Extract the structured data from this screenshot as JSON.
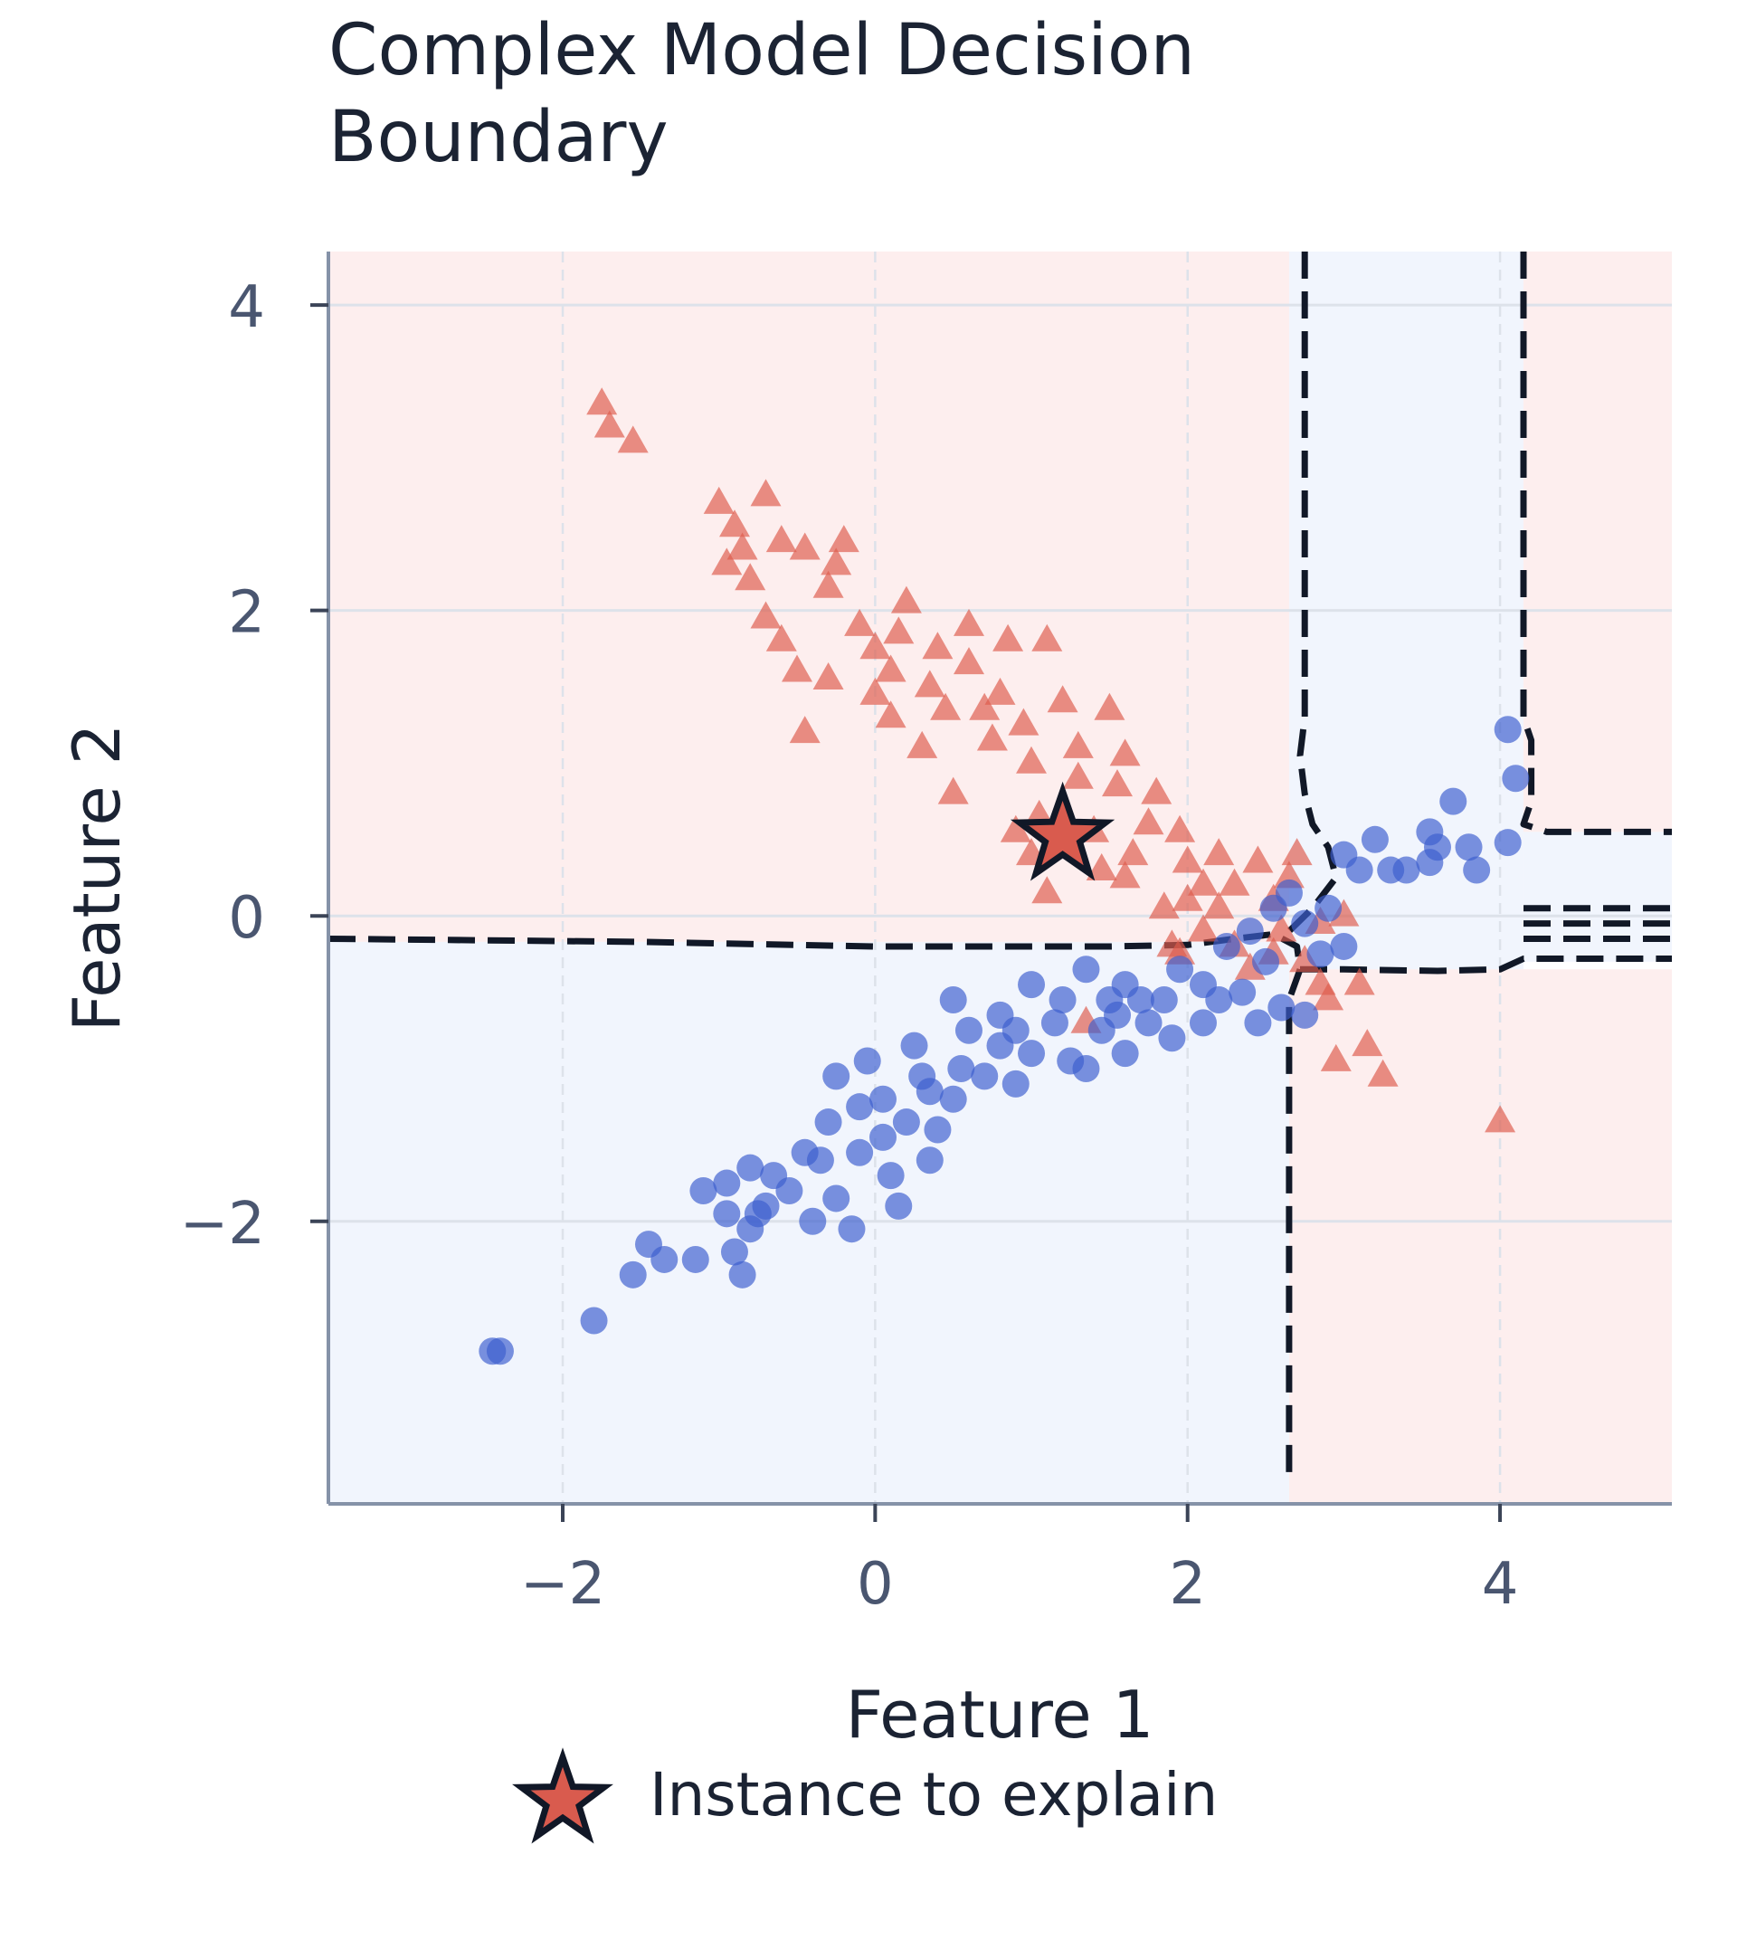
{
  "chart_data": {
    "type": "scatter",
    "title_lines": [
      "Complex Model Decision",
      "Boundary"
    ],
    "xlabel": "Feature 1",
    "ylabel": "Feature 2",
    "xlim": [
      -3.5,
      5.1
    ],
    "ylim": [
      -3.85,
      4.35
    ],
    "xticks": [
      -2,
      0,
      2,
      4
    ],
    "yticks": [
      -2,
      0,
      2,
      4
    ],
    "xtick_labels": [
      "−2",
      "0",
      "2",
      "4"
    ],
    "ytick_labels": [
      "−2",
      "0",
      "2",
      "4"
    ],
    "grid": true,
    "legend": {
      "placement": "bottom-center",
      "entries": [
        "Instance to explain"
      ]
    },
    "colors": {
      "class_triangle": "#dd5b4c",
      "class_circle": "#3c5fcf",
      "region_triangle": "#fdeeee",
      "region_circle": "#f1f5fd",
      "boundary": "#111827",
      "instance_fill": "#d95b4e"
    },
    "regions": [
      {
        "class": "triangle",
        "x": [
          -3.5,
          2.65
        ],
        "y": [
          -0.17,
          4.35
        ]
      },
      {
        "class": "circle",
        "x": [
          2.65,
          4.15
        ],
        "y": [
          -0.35,
          4.35
        ]
      },
      {
        "class": "triangle",
        "x": [
          4.15,
          5.1
        ],
        "y": [
          0.55,
          4.35
        ]
      },
      {
        "class": "circle",
        "x": [
          4.15,
          5.1
        ],
        "y": [
          -0.3,
          0.55
        ]
      },
      {
        "class": "circle",
        "x": [
          -3.5,
          2.65
        ],
        "y": [
          -3.85,
          -0.17
        ]
      },
      {
        "class": "triangle",
        "x": [
          2.65,
          5.1
        ],
        "y": [
          -3.85,
          -0.35
        ]
      }
    ],
    "boundaries": [
      [
        [
          -3.5,
          -0.15
        ],
        [
          -1.5,
          -0.17
        ],
        [
          0.0,
          -0.2
        ],
        [
          1.5,
          -0.2
        ],
        [
          2.0,
          -0.19
        ],
        [
          2.3,
          -0.15
        ],
        [
          2.55,
          -0.12
        ],
        [
          2.7,
          -0.2
        ],
        [
          2.72,
          -0.35
        ],
        [
          2.65,
          -0.55
        ],
        [
          2.65,
          -3.7
        ]
      ],
      [
        [
          2.75,
          4.35
        ],
        [
          2.75,
          1.3
        ],
        [
          2.72,
          1.05
        ],
        [
          2.75,
          0.8
        ],
        [
          2.8,
          0.6
        ],
        [
          2.9,
          0.45
        ],
        [
          2.95,
          0.25
        ],
        [
          2.8,
          0.05
        ],
        [
          2.65,
          -0.1
        ]
      ],
      [
        [
          2.72,
          -0.35
        ],
        [
          3.0,
          -0.35
        ],
        [
          3.6,
          -0.36
        ],
        [
          4.0,
          -0.35
        ],
        [
          4.15,
          -0.28
        ],
        [
          5.1,
          -0.28
        ]
      ],
      [
        [
          4.15,
          4.35
        ],
        [
          4.15,
          1.3
        ],
        [
          4.2,
          1.15
        ],
        [
          4.2,
          0.75
        ],
        [
          4.15,
          0.6
        ],
        [
          4.3,
          0.55
        ],
        [
          5.1,
          0.55
        ]
      ],
      [
        [
          4.15,
          -0.05
        ],
        [
          5.1,
          -0.05
        ]
      ],
      [
        [
          4.15,
          0.05
        ],
        [
          5.1,
          0.05
        ]
      ],
      [
        [
          4.15,
          -0.15
        ],
        [
          5.1,
          -0.15
        ]
      ]
    ],
    "instance": {
      "x": 1.2,
      "y": 0.52,
      "label": "Instance to explain"
    },
    "series": [
      {
        "marker": "triangle",
        "points": [
          [
            -1.75,
            3.35
          ],
          [
            -1.7,
            3.2
          ],
          [
            -1.55,
            3.1
          ],
          [
            -1.0,
            2.7
          ],
          [
            -0.7,
            2.75
          ],
          [
            -0.9,
            2.55
          ],
          [
            -0.6,
            2.45
          ],
          [
            -0.45,
            2.4
          ],
          [
            -0.85,
            2.4
          ],
          [
            -0.95,
            2.3
          ],
          [
            -0.8,
            2.2
          ],
          [
            -0.2,
            2.45
          ],
          [
            -0.25,
            2.3
          ],
          [
            -0.3,
            2.15
          ],
          [
            -0.7,
            1.95
          ],
          [
            -0.6,
            1.8
          ],
          [
            -0.5,
            1.6
          ],
          [
            -0.3,
            1.55
          ],
          [
            -0.45,
            1.2
          ],
          [
            -0.1,
            1.9
          ],
          [
            0.0,
            1.75
          ],
          [
            0.1,
            1.6
          ],
          [
            0.15,
            1.85
          ],
          [
            0.35,
            1.5
          ],
          [
            0.4,
            1.75
          ],
          [
            0.6,
            1.65
          ],
          [
            0.85,
            1.8
          ],
          [
            1.1,
            1.8
          ],
          [
            0.8,
            1.45
          ],
          [
            0.95,
            1.25
          ],
          [
            1.2,
            1.4
          ],
          [
            1.3,
            1.1
          ],
          [
            1.5,
            1.35
          ],
          [
            1.6,
            1.05
          ],
          [
            1.3,
            0.9
          ],
          [
            1.55,
            0.85
          ],
          [
            1.8,
            0.8
          ],
          [
            1.75,
            0.6
          ],
          [
            1.95,
            0.55
          ],
          [
            2.0,
            0.35
          ],
          [
            2.2,
            0.4
          ],
          [
            2.3,
            0.2
          ],
          [
            2.45,
            0.35
          ],
          [
            2.2,
            0.05
          ],
          [
            2.0,
            0.1
          ],
          [
            1.85,
            0.05
          ],
          [
            1.6,
            0.25
          ],
          [
            1.45,
            0.3
          ],
          [
            1.0,
            0.4
          ],
          [
            0.9,
            0.55
          ],
          [
            1.1,
            0.15
          ],
          [
            1.0,
            1.0
          ],
          [
            0.75,
            1.15
          ],
          [
            0.5,
            0.8
          ],
          [
            0.3,
            1.1
          ],
          [
            0.1,
            1.3
          ],
          [
            0.6,
            1.9
          ],
          [
            0.2,
            2.05
          ],
          [
            2.55,
            0.1
          ],
          [
            2.1,
            -0.1
          ],
          [
            2.3,
            -0.2
          ],
          [
            1.95,
            -0.25
          ],
          [
            2.4,
            -0.35
          ],
          [
            2.6,
            -0.1
          ],
          [
            2.75,
            -0.3
          ],
          [
            2.85,
            -0.45
          ],
          [
            2.9,
            -0.55
          ],
          [
            2.85,
            -0.05
          ],
          [
            3.0,
            0.0
          ],
          [
            3.1,
            -0.45
          ],
          [
            3.15,
            -0.85
          ],
          [
            3.25,
            -1.05
          ],
          [
            2.95,
            -0.95
          ],
          [
            4.0,
            -1.35
          ],
          [
            1.35,
            -0.7
          ],
          [
            1.9,
            -0.2
          ],
          [
            1.65,
            0.4
          ],
          [
            0.7,
            1.35
          ],
          [
            0.45,
            1.35
          ],
          [
            0.0,
            1.45
          ],
          [
            1.05,
            0.65
          ],
          [
            1.4,
            0.55
          ],
          [
            2.1,
            0.2
          ],
          [
            2.65,
            0.25
          ],
          [
            2.7,
            0.4
          ],
          [
            2.55,
            -0.25
          ]
        ]
      },
      {
        "marker": "circle",
        "points": [
          [
            -2.45,
            -2.85
          ],
          [
            -2.4,
            -2.85
          ],
          [
            -1.8,
            -2.65
          ],
          [
            -1.45,
            -2.15
          ],
          [
            -1.55,
            -2.35
          ],
          [
            -1.35,
            -2.25
          ],
          [
            -1.15,
            -2.25
          ],
          [
            -0.9,
            -2.2
          ],
          [
            -0.85,
            -2.35
          ],
          [
            -1.1,
            -1.8
          ],
          [
            -0.95,
            -1.75
          ],
          [
            -0.8,
            -1.65
          ],
          [
            -0.7,
            -1.9
          ],
          [
            -0.8,
            -2.05
          ],
          [
            -0.55,
            -1.8
          ],
          [
            -0.4,
            -2.0
          ],
          [
            -0.35,
            -1.6
          ],
          [
            -0.25,
            -1.85
          ],
          [
            -0.1,
            -1.55
          ],
          [
            -0.3,
            -1.35
          ],
          [
            -0.1,
            -1.25
          ],
          [
            0.05,
            -1.45
          ],
          [
            0.1,
            -1.7
          ],
          [
            0.2,
            -1.35
          ],
          [
            0.35,
            -1.6
          ],
          [
            0.4,
            -1.4
          ],
          [
            0.5,
            -1.2
          ],
          [
            0.3,
            -1.05
          ],
          [
            0.55,
            -1.0
          ],
          [
            0.7,
            -1.05
          ],
          [
            0.8,
            -0.85
          ],
          [
            0.9,
            -1.1
          ],
          [
            1.0,
            -0.9
          ],
          [
            1.15,
            -0.7
          ],
          [
            1.25,
            -0.95
          ],
          [
            1.35,
            -1.0
          ],
          [
            1.45,
            -0.75
          ],
          [
            1.55,
            -0.65
          ],
          [
            1.6,
            -0.9
          ],
          [
            1.75,
            -0.7
          ],
          [
            1.85,
            -0.55
          ],
          [
            1.95,
            -0.35
          ],
          [
            2.1,
            -0.45
          ],
          [
            2.2,
            -0.55
          ],
          [
            2.35,
            -0.5
          ],
          [
            2.5,
            -0.3
          ],
          [
            2.4,
            -0.1
          ],
          [
            2.55,
            0.05
          ],
          [
            2.65,
            0.15
          ],
          [
            2.75,
            -0.05
          ],
          [
            2.9,
            0.05
          ],
          [
            3.0,
            0.4
          ],
          [
            3.1,
            0.3
          ],
          [
            3.2,
            0.5
          ],
          [
            3.4,
            0.3
          ],
          [
            3.55,
            0.55
          ],
          [
            3.6,
            0.45
          ],
          [
            3.7,
            0.75
          ],
          [
            3.8,
            0.45
          ],
          [
            3.85,
            0.3
          ],
          [
            3.55,
            0.35
          ],
          [
            4.05,
            1.22
          ],
          [
            4.1,
            0.9
          ],
          [
            4.05,
            0.48
          ],
          [
            2.1,
            -0.7
          ],
          [
            2.6,
            -0.6
          ],
          [
            2.75,
            -0.65
          ],
          [
            1.35,
            -0.35
          ],
          [
            1.6,
            -0.45
          ],
          [
            1.0,
            -0.45
          ],
          [
            0.8,
            -0.65
          ],
          [
            0.6,
            -0.75
          ],
          [
            0.5,
            -0.55
          ],
          [
            -0.05,
            -0.95
          ],
          [
            -0.25,
            -1.05
          ],
          [
            0.15,
            -1.9
          ],
          [
            -0.15,
            -2.05
          ],
          [
            -0.75,
            -1.95
          ],
          [
            -0.95,
            -1.95
          ],
          [
            3.0,
            -0.2
          ],
          [
            2.85,
            -0.25
          ],
          [
            3.3,
            0.3
          ],
          [
            1.9,
            -0.8
          ],
          [
            1.7,
            -0.55
          ],
          [
            1.2,
            -0.55
          ],
          [
            0.35,
            -1.15
          ],
          [
            0.05,
            -1.2
          ],
          [
            -0.45,
            -1.55
          ],
          [
            -0.65,
            -1.7
          ],
          [
            0.25,
            -0.85
          ],
          [
            0.9,
            -0.75
          ],
          [
            1.5,
            -0.55
          ],
          [
            2.25,
            -0.2
          ],
          [
            2.45,
            -0.7
          ]
        ]
      }
    ]
  }
}
